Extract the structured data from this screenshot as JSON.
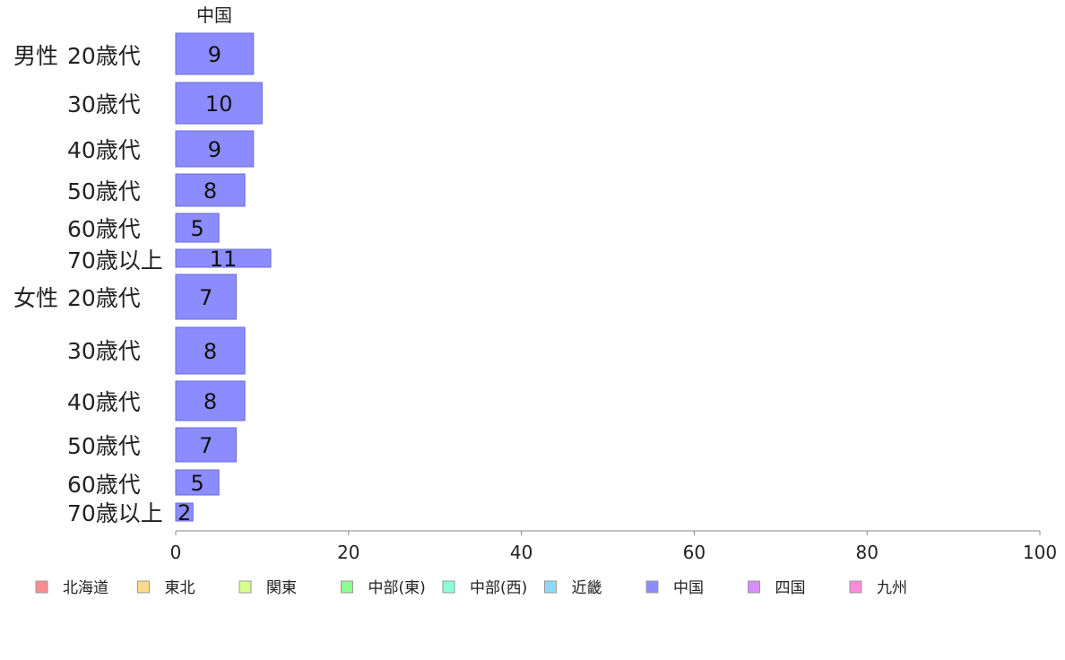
{
  "chart_data": {
    "type": "bar",
    "orientation": "horizontal",
    "panel_title": "中国",
    "groups": [
      {
        "label": "男性",
        "categories": [
          "20歳代",
          "30歳代",
          "40歳代",
          "50歳代",
          "60歳代",
          "70歳以上"
        ],
        "values": [
          9,
          10,
          9,
          8,
          5,
          11
        ]
      },
      {
        "label": "女性",
        "categories": [
          "20歳代",
          "30歳代",
          "40歳代",
          "50歳代",
          "60歳代",
          "70歳以上"
        ],
        "values": [
          7,
          8,
          8,
          7,
          5,
          2
        ]
      }
    ],
    "xlim": [
      0,
      100
    ],
    "xticks": [
      0,
      20,
      40,
      60,
      80,
      100
    ],
    "grid": false,
    "legend_position": "bottom",
    "legend": [
      {
        "name": "北海道",
        "color": "#ff8c8c"
      },
      {
        "name": "東北",
        "color": "#ffd98c"
      },
      {
        "name": "関東",
        "color": "#d9ff8c"
      },
      {
        "name": "中部(東)",
        "color": "#8cff8c"
      },
      {
        "name": "中部(西)",
        "color": "#8cffd9"
      },
      {
        "name": "近畿",
        "color": "#8cd9ff"
      },
      {
        "name": "中国",
        "color": "#8c8cff"
      },
      {
        "name": "四国",
        "color": "#d98cff"
      },
      {
        "name": "九州",
        "color": "#ff8cd9"
      }
    ],
    "bar_color": "#8c8cff"
  }
}
